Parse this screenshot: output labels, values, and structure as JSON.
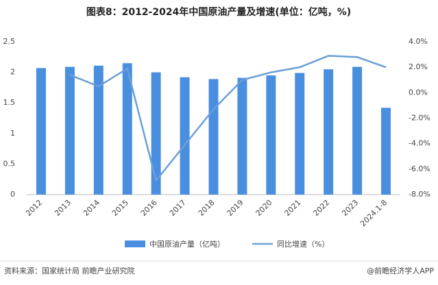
{
  "chart_data": {
    "type": "bar_line",
    "title": "图表8：2012-2024年中国原油产量及增速(单位：亿吨，%)",
    "categories": [
      "2012",
      "2013",
      "2014",
      "2015",
      "2016",
      "2017",
      "2018",
      "2019",
      "2020",
      "2021",
      "2022",
      "2023",
      "2024.1-8"
    ],
    "series": [
      {
        "name": "中国原油产量（亿吨）",
        "type": "bar",
        "color": "#4a8ee0",
        "values": [
          2.07,
          2.09,
          2.11,
          2.15,
          2.0,
          1.92,
          1.89,
          1.91,
          1.95,
          1.99,
          2.05,
          2.09,
          1.42
        ]
      },
      {
        "name": "同比增速（%）",
        "type": "line",
        "axis": "y2",
        "color": "#6a9fd8",
        "values": [
          null,
          1.4,
          0.5,
          1.9,
          -6.9,
          -4.1,
          -1.3,
          1.0,
          1.6,
          2.0,
          2.9,
          2.8,
          2.0
        ]
      }
    ],
    "ylim": [
      0,
      2.5
    ],
    "yticks": [
      0,
      0.5,
      1,
      1.5,
      2,
      2.5
    ],
    "y2lim": [
      -8,
      4
    ],
    "y2ticks": [
      {
        "value": -8,
        "label": "-8.0%"
      },
      {
        "value": -6,
        "label": "-6.0%"
      },
      {
        "value": -4,
        "label": "-4.0%"
      },
      {
        "value": -2,
        "label": "-2.0%"
      },
      {
        "value": 0,
        "label": "0.0%"
      },
      {
        "value": 2,
        "label": "2.0%"
      },
      {
        "value": 4,
        "label": "4.0%"
      }
    ],
    "source": "资料来源：国家统计局 前瞻产业研究院",
    "credit": "@前瞻经济学人APP"
  }
}
